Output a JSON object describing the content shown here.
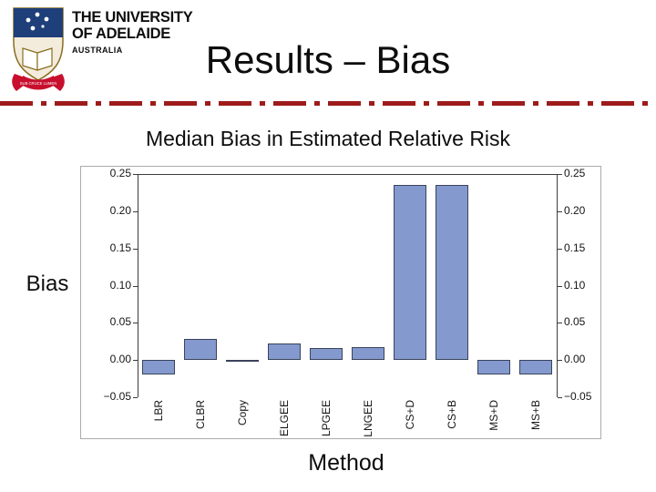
{
  "slide": {
    "title": "Results – Bias",
    "divider_color": "#9E1B1B",
    "logo": {
      "line1": "THE UNIVERSITY",
      "line2": "OF ADELAIDE",
      "line3": "AUSTRALIA",
      "motto": "SUB CRUCE LUMEN"
    }
  },
  "chart_data": {
    "type": "bar",
    "title": "Median Bias in Estimated Relative Risk",
    "xlabel": "Method",
    "ylabel": "Bias",
    "categories": [
      "LBR",
      "CLBR",
      "Copy",
      "ELGEE",
      "LPGEE",
      "LNGEE",
      "CS+D",
      "CS+B",
      "MS+D",
      "MS+B"
    ],
    "values": [
      -0.02,
      0.028,
      -0.002,
      0.022,
      0.016,
      0.017,
      0.235,
      0.235,
      -0.02,
      -0.02
    ],
    "ylim": [
      -0.05,
      0.25
    ],
    "yticks": [
      0.25,
      0.2,
      0.15,
      0.1,
      0.05,
      0.0,
      -0.05
    ],
    "ytick_labels": [
      "0.25",
      "0.20",
      "0.15",
      "0.10",
      "0.05",
      "0.00",
      "−0.05"
    ],
    "mirrored_y_axis": true,
    "grid": false,
    "legend": null,
    "bar_color": "#8499CE",
    "bar_border_color": "#39435A"
  }
}
